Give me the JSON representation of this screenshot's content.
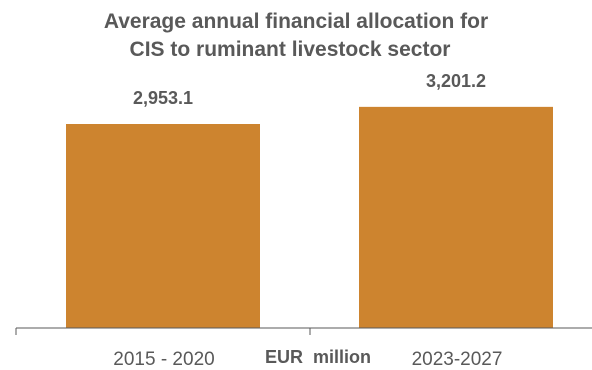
{
  "chart_data": {
    "type": "bar",
    "title_lines": [
      "Average annual financial allocation for",
      "CIS to ruminant livestock sector"
    ],
    "categories": [
      "2015 - 2020",
      "2023-2027"
    ],
    "values": [
      2953.1,
      3201.2
    ],
    "data_labels": [
      "2,953.1",
      "3,201.2"
    ],
    "unit_label": "EUR  million",
    "ylim": [
      0,
      3500
    ],
    "grid": false,
    "colors": {
      "bar": "#CD842F",
      "axis": "#595959",
      "text": "#595959"
    }
  }
}
